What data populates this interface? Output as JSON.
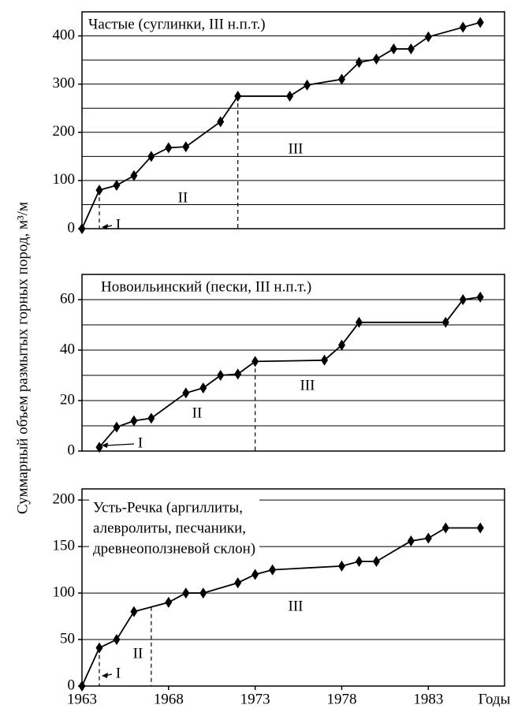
{
  "y_label": "Суммарный объем размытых горных пород, м³/м",
  "chart_data": [
    {
      "type": "line",
      "title": [
        "Частые (суглинки, III н.п.т.)"
      ],
      "x": [
        1963,
        1964,
        1965,
        1966,
        1967,
        1968,
        1969,
        1971,
        1972,
        1975,
        1976,
        1978,
        1979,
        1980,
        1981,
        1982,
        1983,
        1985,
        1986
      ],
      "series": [
        {
          "color": "#000000",
          "values": [
            0,
            80,
            90,
            110,
            150,
            168,
            170,
            222,
            275,
            275,
            298,
            310,
            345,
            352,
            373,
            373,
            398,
            418,
            428
          ]
        }
      ],
      "xlim": [
        1963,
        1987.4
      ],
      "ylim": [
        0,
        450
      ],
      "yticks": [
        0,
        100,
        200,
        300,
        400
      ],
      "gridlines": [
        50,
        100,
        150,
        200,
        250,
        300,
        350,
        400
      ],
      "stage_boundaries": [
        1964,
        1972
      ],
      "annotations": [
        "I",
        "II",
        "III"
      ]
    },
    {
      "type": "line",
      "title": [
        "Новоильинский (пески, III н.п.т.)"
      ],
      "x": [
        1964,
        1965,
        1966,
        1967,
        1969,
        1970,
        1971,
        1972,
        1973,
        1977,
        1978,
        1979,
        1984,
        1985,
        1986
      ],
      "series": [
        {
          "color": "#000000",
          "values": [
            1.5,
            9.5,
            12,
            13,
            23,
            25,
            30,
            30.5,
            35.5,
            36,
            42,
            51,
            51,
            60,
            61
          ]
        }
      ],
      "xlim": [
        1963,
        1987.4
      ],
      "ylim": [
        0,
        70
      ],
      "yticks": [
        0,
        20,
        40,
        60
      ],
      "gridlines": [
        10,
        20,
        30,
        40,
        50,
        60
      ],
      "stage_boundaries": [
        1964,
        1973
      ],
      "annotations": [
        "I",
        "II",
        "III"
      ]
    },
    {
      "type": "line",
      "title": [
        "Усть-Речка (аргиллиты,",
        "алевролиты, песчаники,",
        "древнеоползневой склон)"
      ],
      "x": [
        1963,
        1964,
        1965,
        1966,
        1968,
        1969,
        1970,
        1972,
        1973,
        1974,
        1978,
        1979,
        1980,
        1982,
        1983,
        1984,
        1986
      ],
      "series": [
        {
          "color": "#000000",
          "values": [
            0,
            41,
            50,
            80,
            90,
            100,
            100,
            111,
            120,
            125,
            129,
            134,
            134,
            156,
            159,
            170,
            170
          ]
        }
      ],
      "xlim": [
        1963,
        1987.4
      ],
      "ylim": [
        0,
        212
      ],
      "yticks": [
        0,
        50,
        100,
        150,
        200
      ],
      "xticks": [
        1963,
        1968,
        1973,
        1978,
        1983
      ],
      "x_label": "Годы",
      "gridlines": [
        50,
        100,
        150,
        200
      ],
      "stage_boundaries": [
        1964,
        1967
      ],
      "annotations": [
        "I",
        "II",
        "III"
      ]
    }
  ]
}
